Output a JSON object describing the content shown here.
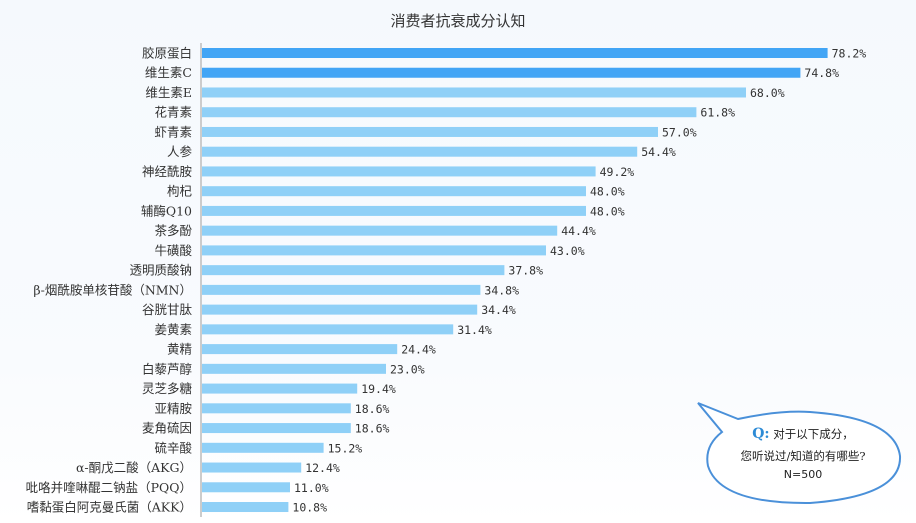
{
  "chart_data": {
    "type": "bar",
    "orientation": "horizontal",
    "title": "消费者抗衰成分认知",
    "categories": [
      "胶原蛋白",
      "维生素C",
      "维生素E",
      "花青素",
      "虾青素",
      "人参",
      "神经酰胺",
      "枸杞",
      "辅酶Q10",
      "茶多酚",
      "牛磺酸",
      "透明质酸钠",
      "β-烟酰胺单核苷酸（NMN）",
      "谷胱甘肽",
      "姜黄素",
      "黄精",
      "白藜芦醇",
      "灵芝多糖",
      "亚精胺",
      "麦角硫因",
      "硫辛酸",
      "α-酮戊二酸（AKG）",
      "吡咯并喹啉醌二钠盐（PQQ）",
      "嗜黏蛋白阿克曼氏菌（AKK）"
    ],
    "values": [
      78.2,
      74.8,
      68.0,
      61.8,
      57.0,
      54.4,
      49.2,
      48.0,
      48.0,
      44.4,
      43.0,
      37.8,
      34.8,
      34.4,
      31.4,
      24.4,
      23.0,
      19.4,
      18.6,
      18.6,
      15.2,
      12.4,
      11.0,
      10.8
    ],
    "value_labels": [
      "78.2%",
      "74.8%",
      "68.0%",
      "61.8%",
      "57.0%",
      "54.4%",
      "49.2%",
      "48.0%",
      "48.0%",
      "44.4%",
      "43.0%",
      "37.8%",
      "34.8%",
      "34.4%",
      "31.4%",
      "24.4%",
      "23.0%",
      "19.4%",
      "18.6%",
      "18.6%",
      "15.2%",
      "12.4%",
      "11.0%",
      "10.8%"
    ],
    "highlight_count": 2,
    "colors": {
      "highlight": "#42a5f5",
      "normal": "#8fd0f7",
      "axis": "#cccccc"
    },
    "xlim": [
      0,
      100
    ],
    "grid": false,
    "legend": "none"
  },
  "callout": {
    "q_label": "Q:",
    "line1": "对于以下成分，",
    "line2": "您听说过/知道的有哪些?",
    "line3": "N=500",
    "border_color": "#4a90d9"
  }
}
